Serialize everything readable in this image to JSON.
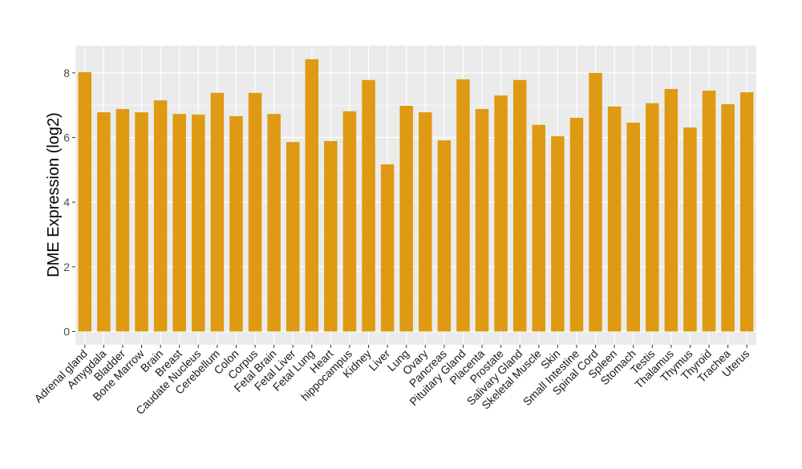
{
  "chart_data": {
    "type": "bar",
    "title": "",
    "xlabel": "",
    "ylabel": "DME Expression (log2)",
    "ylim": [
      -0.41,
      8.84
    ],
    "yticks": [
      0,
      2,
      4,
      6,
      8
    ],
    "grid": true,
    "bar_color": "#DE9A12",
    "panel_color": "#EBEBEB",
    "categories": [
      "Adrenal gland",
      "Amygdala",
      "Bladder",
      "Bone Marrow",
      "Brain",
      "Breast",
      "Caudate Nucleus",
      "Cerebellum",
      "Colon",
      "Corpus",
      "Fetal Brain",
      "Fetal Liver",
      "Fetal Lung",
      "Heart",
      "hippocampus",
      "Kidney",
      "Liver",
      "Lung",
      "Ovary",
      "Pancreas",
      "Pituitary Gland",
      "Placenta",
      "Prostate",
      "Salivary Gland",
      "Skeletal Muscle",
      "Skin",
      "Small Intestine",
      "Spinal Cord",
      "Spleen",
      "Stomach",
      "Testis",
      "Thalamus",
      "Thymus",
      "Thyroid",
      "Trachea",
      "Uterus"
    ],
    "values": [
      8.02,
      6.78,
      6.88,
      6.78,
      7.15,
      6.73,
      6.71,
      7.38,
      6.66,
      7.38,
      6.73,
      5.86,
      8.42,
      5.89,
      6.81,
      7.78,
      5.17,
      6.98,
      6.78,
      5.91,
      7.8,
      6.88,
      7.3,
      7.78,
      6.39,
      6.04,
      6.61,
      8.0,
      6.96,
      6.46,
      7.06,
      7.5,
      6.31,
      7.45,
      7.03,
      7.4
    ]
  }
}
